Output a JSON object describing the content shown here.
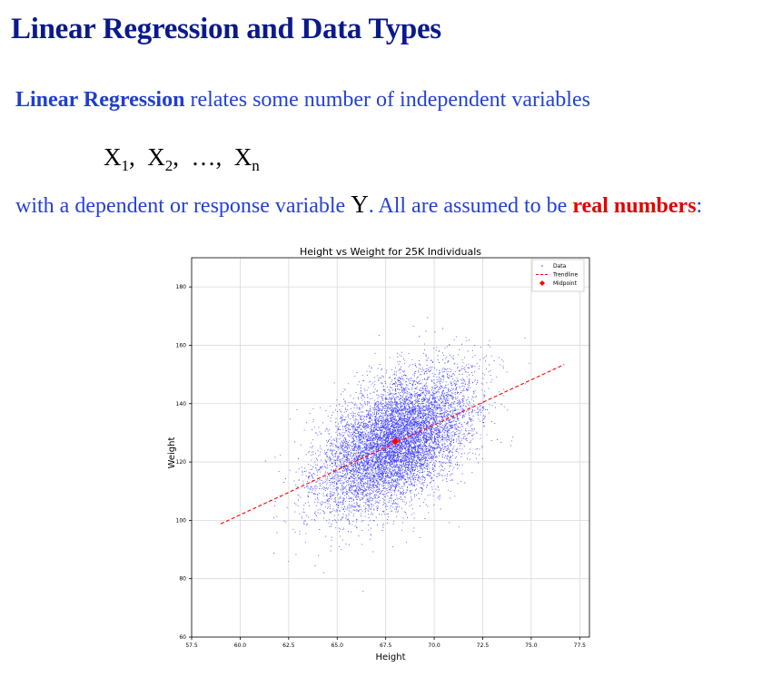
{
  "page": {
    "title": "Linear Regression and Data Types",
    "line1_bold": "Linear Regression",
    "line1_rest": " relates some number of independent variables",
    "vars": {
      "x": "X",
      "sub1": "1",
      "sub2": "2",
      "subn": "n",
      "sep": ",",
      "ellipsis": "…,"
    },
    "line3_a": "with a dependent or response variable ",
    "line3_y": "Y",
    "line3_b": ". All are assumed to be ",
    "line3_bold": "real numbers",
    "line3_end": ":"
  },
  "chart_data": {
    "type": "scatter",
    "title": "Height vs Weight for 25K Individuals",
    "xlabel": "Height",
    "ylabel": "Weight",
    "xlim": [
      57.5,
      78.0
    ],
    "ylim": [
      60,
      190
    ],
    "xticks": [
      "57.5",
      "60.0",
      "62.5",
      "65.0",
      "67.5",
      "70.0",
      "72.5",
      "75.0",
      "77.5"
    ],
    "yticks": [
      "60",
      "80",
      "100",
      "120",
      "140",
      "160",
      "180"
    ],
    "grid": true,
    "legend_position": "top-right",
    "legend": [
      "Data",
      "Trendline",
      "Midpoint"
    ],
    "series": [
      {
        "name": "Data",
        "n_points": 25000,
        "mean_x": 68.0,
        "mean_y": 127.1,
        "std_x": 1.9,
        "std_y": 11.7,
        "correlation": 0.5,
        "color": "#0000ff"
      },
      {
        "name": "Trendline",
        "x": [
          59.0,
          76.7
        ],
        "y": [
          98.8,
          153.4
        ],
        "color": "#ff0000",
        "style": "dashed"
      },
      {
        "name": "Midpoint",
        "x": [
          68.0
        ],
        "y": [
          127.1
        ],
        "color": "#ff0000",
        "marker": "diamond"
      }
    ]
  }
}
